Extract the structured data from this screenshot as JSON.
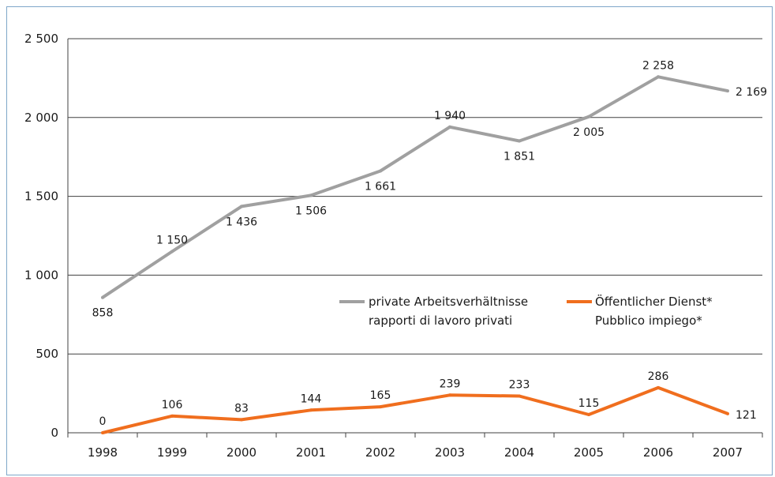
{
  "chart_data": {
    "type": "line",
    "title": "",
    "xlabel": "",
    "ylabel": "",
    "x": [
      "1998",
      "1999",
      "2000",
      "2001",
      "2002",
      "2003",
      "2004",
      "2005",
      "2006",
      "2007"
    ],
    "ylim": [
      0,
      2500
    ],
    "yticks": [
      0,
      500,
      1000,
      1500,
      2000,
      2500
    ],
    "ytick_labels": [
      "0",
      "500",
      "1 000",
      "1 500",
      "2 000",
      "2 500"
    ],
    "grid": "horizontal",
    "legend_position": "center-right",
    "series": [
      {
        "name_line1": "private Arbeitsverhältnisse",
        "name_line2": "rapporti di lavoro privati",
        "color": "#a0a0a0",
        "values": [
          858,
          1150,
          1436,
          1506,
          1661,
          1940,
          1851,
          2005,
          2258,
          2169
        ],
        "labels": [
          "858",
          "1 150",
          "1 436",
          "1 506",
          "1 661",
          "1 940",
          "1 851",
          "2 005",
          "2 258",
          "2 169"
        ],
        "label_positions": [
          "below",
          "above",
          "below",
          "below",
          "below",
          "above",
          "below",
          "below",
          "above",
          "right"
        ]
      },
      {
        "name_line1": "Öffentlicher Dienst*",
        "name_line2": "Pubblico impiego*",
        "color": "#f06e1e",
        "values": [
          0,
          106,
          83,
          144,
          165,
          239,
          233,
          115,
          286,
          121
        ],
        "labels": [
          "0",
          "106",
          "83",
          "144",
          "165",
          "239",
          "233",
          "115",
          "286",
          "121"
        ],
        "label_positions": [
          "above",
          "above",
          "above",
          "above",
          "above",
          "above",
          "above",
          "above",
          "above",
          "right"
        ]
      }
    ]
  }
}
